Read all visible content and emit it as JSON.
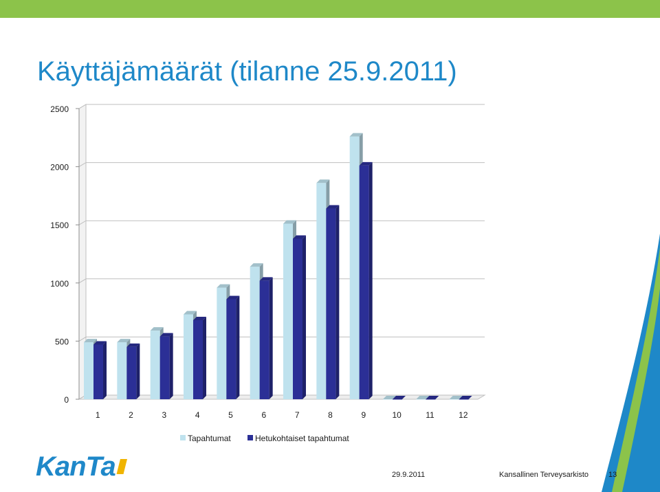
{
  "slide": {
    "title": "Käyttäjämäärät (tilanne 25.9.2011)",
    "footer_date": "29.9.2011",
    "footer_org": "Kansallinen Terveysarkisto",
    "page_number": "13",
    "logo_text": "KanTa"
  },
  "colors": {
    "title": "#1e88c8",
    "accent_green": "#8cc34a",
    "logo_blue": "#1f88c9",
    "logo_accent": "#f0b400"
  },
  "chart_data": {
    "type": "bar",
    "style": "3d-clustered",
    "categories": [
      "1",
      "2",
      "3",
      "4",
      "5",
      "6",
      "7",
      "8",
      "9",
      "10",
      "11",
      "12"
    ],
    "series": [
      {
        "name": "Tapahtumat",
        "color": "#bfe2ee",
        "values": [
          490,
          490,
          590,
          730,
          960,
          1140,
          1510,
          1860,
          2260,
          0,
          0,
          0
        ]
      },
      {
        "name": "Hetukohtaiset tapahtumat",
        "color": "#2b2f96",
        "values": [
          470,
          450,
          540,
          680,
          860,
          1020,
          1380,
          1640,
          2010,
          0,
          0,
          0
        ]
      }
    ],
    "y_ticks": [
      "0",
      "500",
      "1000",
      "1500",
      "2000",
      "2500"
    ],
    "ylim": [
      0,
      2500
    ],
    "grid": true,
    "legend_position": "bottom"
  }
}
